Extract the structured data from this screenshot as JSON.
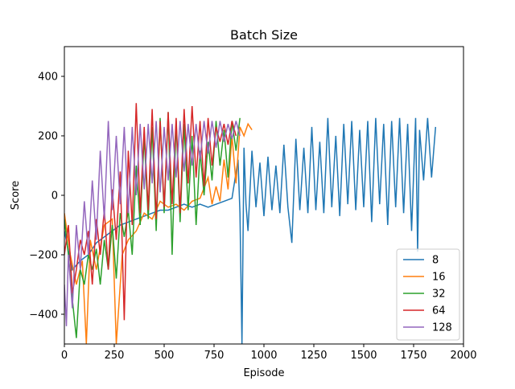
{
  "chart_data": {
    "type": "line",
    "title": "Batch Size",
    "xlabel": "Episode",
    "ylabel": "Score",
    "xlim": [
      0,
      2000
    ],
    "ylim": [
      -500,
      500
    ],
    "xticks": [
      0,
      250,
      500,
      750,
      1000,
      1250,
      1500,
      1750,
      2000
    ],
    "yticks": [
      -400,
      -200,
      0,
      200,
      400
    ],
    "grid": false,
    "legend_position": "lower-right",
    "series": [
      {
        "name": "8",
        "color": "#1f77b4",
        "points": [
          [
            0,
            -120
          ],
          [
            40,
            -250
          ],
          [
            80,
            -220
          ],
          [
            120,
            -200
          ],
          [
            160,
            -160
          ],
          [
            200,
            -140
          ],
          [
            240,
            -120
          ],
          [
            280,
            -100
          ],
          [
            320,
            -90
          ],
          [
            360,
            -80
          ],
          [
            400,
            -70
          ],
          [
            440,
            -60
          ],
          [
            480,
            -50
          ],
          [
            520,
            -50
          ],
          [
            560,
            -40
          ],
          [
            600,
            -30
          ],
          [
            640,
            -40
          ],
          [
            680,
            -30
          ],
          [
            720,
            -40
          ],
          [
            760,
            -30
          ],
          [
            800,
            -20
          ],
          [
            840,
            -10
          ],
          [
            870,
            120
          ],
          [
            880,
            -60
          ],
          [
            890,
            -500
          ],
          [
            900,
            160
          ],
          [
            910,
            -30
          ],
          [
            920,
            -120
          ],
          [
            940,
            150
          ],
          [
            960,
            -40
          ],
          [
            980,
            110
          ],
          [
            1000,
            -70
          ],
          [
            1020,
            130
          ],
          [
            1040,
            -50
          ],
          [
            1060,
            100
          ],
          [
            1080,
            -60
          ],
          [
            1100,
            170
          ],
          [
            1120,
            -40
          ],
          [
            1140,
            -160
          ],
          [
            1160,
            190
          ],
          [
            1180,
            -50
          ],
          [
            1200,
            160
          ],
          [
            1220,
            -60
          ],
          [
            1240,
            230
          ],
          [
            1260,
            -50
          ],
          [
            1280,
            180
          ],
          [
            1300,
            -60
          ],
          [
            1320,
            260
          ],
          [
            1340,
            -40
          ],
          [
            1360,
            200
          ],
          [
            1380,
            -70
          ],
          [
            1400,
            240
          ],
          [
            1420,
            -30
          ],
          [
            1440,
            250
          ],
          [
            1460,
            -50
          ],
          [
            1480,
            220
          ],
          [
            1500,
            -40
          ],
          [
            1520,
            250
          ],
          [
            1540,
            -90
          ],
          [
            1560,
            260
          ],
          [
            1580,
            -30
          ],
          [
            1600,
            240
          ],
          [
            1620,
            -100
          ],
          [
            1640,
            250
          ],
          [
            1660,
            -40
          ],
          [
            1680,
            260
          ],
          [
            1700,
            -60
          ],
          [
            1720,
            240
          ],
          [
            1740,
            -120
          ],
          [
            1760,
            260
          ],
          [
            1770,
            -190
          ],
          [
            1780,
            220
          ],
          [
            1800,
            50
          ],
          [
            1820,
            260
          ],
          [
            1840,
            60
          ],
          [
            1860,
            230
          ]
        ]
      },
      {
        "name": "16",
        "color": "#ff7f0e",
        "points": [
          [
            0,
            -60
          ],
          [
            30,
            -200
          ],
          [
            60,
            -300
          ],
          [
            90,
            -220
          ],
          [
            110,
            -500
          ],
          [
            130,
            -150
          ],
          [
            160,
            -250
          ],
          [
            200,
            -100
          ],
          [
            240,
            -80
          ],
          [
            260,
            -500
          ],
          [
            290,
            -200
          ],
          [
            320,
            -150
          ],
          [
            360,
            -120
          ],
          [
            400,
            -60
          ],
          [
            440,
            -80
          ],
          [
            480,
            -20
          ],
          [
            520,
            -40
          ],
          [
            560,
            -30
          ],
          [
            600,
            -50
          ],
          [
            640,
            -20
          ],
          [
            680,
            -10
          ],
          [
            720,
            60
          ],
          [
            740,
            -30
          ],
          [
            760,
            30
          ],
          [
            780,
            -20
          ],
          [
            800,
            120
          ],
          [
            820,
            20
          ],
          [
            840,
            200
          ],
          [
            860,
            40
          ],
          [
            880,
            230
          ],
          [
            900,
            200
          ],
          [
            920,
            240
          ],
          [
            940,
            220
          ]
        ]
      },
      {
        "name": "32",
        "color": "#2ca02c",
        "points": [
          [
            0,
            -80
          ],
          [
            20,
            -200
          ],
          [
            40,
            -350
          ],
          [
            60,
            -480
          ],
          [
            80,
            -250
          ],
          [
            100,
            -300
          ],
          [
            120,
            -200
          ],
          [
            140,
            -250
          ],
          [
            160,
            -180
          ],
          [
            180,
            -300
          ],
          [
            200,
            -150
          ],
          [
            220,
            -250
          ],
          [
            240,
            -100
          ],
          [
            260,
            -280
          ],
          [
            280,
            -60
          ],
          [
            300,
            -140
          ],
          [
            320,
            -50
          ],
          [
            340,
            -200
          ],
          [
            360,
            100
          ],
          [
            380,
            -100
          ],
          [
            400,
            200
          ],
          [
            420,
            -80
          ],
          [
            440,
            230
          ],
          [
            460,
            -120
          ],
          [
            480,
            260
          ],
          [
            500,
            -60
          ],
          [
            520,
            280
          ],
          [
            540,
            -200
          ],
          [
            560,
            250
          ],
          [
            580,
            -90
          ],
          [
            600,
            240
          ],
          [
            620,
            -50
          ],
          [
            640,
            200
          ],
          [
            660,
            -100
          ],
          [
            680,
            150
          ],
          [
            700,
            0
          ],
          [
            720,
            180
          ],
          [
            740,
            50
          ],
          [
            760,
            250
          ],
          [
            780,
            100
          ],
          [
            800,
            220
          ],
          [
            820,
            60
          ],
          [
            840,
            250
          ],
          [
            860,
            150
          ],
          [
            880,
            260
          ]
        ]
      },
      {
        "name": "64",
        "color": "#d62728",
        "points": [
          [
            0,
            -200
          ],
          [
            20,
            -100
          ],
          [
            40,
            -330
          ],
          [
            60,
            -250
          ],
          [
            80,
            -150
          ],
          [
            100,
            -200
          ],
          [
            120,
            -120
          ],
          [
            140,
            -300
          ],
          [
            160,
            -80
          ],
          [
            180,
            -200
          ],
          [
            200,
            -50
          ],
          [
            220,
            -250
          ],
          [
            240,
            20
          ],
          [
            260,
            -150
          ],
          [
            280,
            80
          ],
          [
            300,
            -420
          ],
          [
            320,
            150
          ],
          [
            340,
            -100
          ],
          [
            360,
            310
          ],
          [
            380,
            -60
          ],
          [
            400,
            230
          ],
          [
            420,
            -50
          ],
          [
            440,
            290
          ],
          [
            460,
            -80
          ],
          [
            480,
            250
          ],
          [
            500,
            -40
          ],
          [
            520,
            280
          ],
          [
            540,
            -30
          ],
          [
            560,
            260
          ],
          [
            580,
            -60
          ],
          [
            600,
            290
          ],
          [
            620,
            40
          ],
          [
            640,
            300
          ],
          [
            660,
            60
          ],
          [
            680,
            250
          ],
          [
            700,
            30
          ],
          [
            720,
            260
          ],
          [
            740,
            100
          ],
          [
            760,
            230
          ],
          [
            780,
            180
          ],
          [
            800,
            240
          ],
          [
            820,
            170
          ],
          [
            840,
            250
          ],
          [
            860,
            200
          ]
        ]
      },
      {
        "name": "128",
        "color": "#9467bd",
        "points": [
          [
            0,
            -300
          ],
          [
            10,
            -440
          ],
          [
            20,
            -200
          ],
          [
            40,
            -380
          ],
          [
            60,
            -100
          ],
          [
            80,
            -250
          ],
          [
            100,
            -20
          ],
          [
            120,
            -200
          ],
          [
            140,
            50
          ],
          [
            160,
            -150
          ],
          [
            180,
            150
          ],
          [
            200,
            -80
          ],
          [
            220,
            250
          ],
          [
            240,
            -50
          ],
          [
            260,
            200
          ],
          [
            280,
            -30
          ],
          [
            300,
            230
          ],
          [
            320,
            -60
          ],
          [
            340,
            230
          ],
          [
            360,
            0
          ],
          [
            380,
            240
          ],
          [
            400,
            20
          ],
          [
            420,
            240
          ],
          [
            440,
            40
          ],
          [
            460,
            250
          ],
          [
            480,
            10
          ],
          [
            500,
            230
          ],
          [
            520,
            50
          ],
          [
            540,
            240
          ],
          [
            560,
            60
          ],
          [
            580,
            250
          ],
          [
            600,
            80
          ],
          [
            620,
            240
          ],
          [
            640,
            100
          ],
          [
            660,
            240
          ],
          [
            680,
            120
          ],
          [
            700,
            250
          ],
          [
            720,
            140
          ],
          [
            740,
            250
          ],
          [
            760,
            160
          ],
          [
            780,
            250
          ],
          [
            800,
            180
          ],
          [
            820,
            240
          ],
          [
            840,
            190
          ],
          [
            860,
            250
          ],
          [
            880,
            200
          ]
        ]
      }
    ]
  }
}
